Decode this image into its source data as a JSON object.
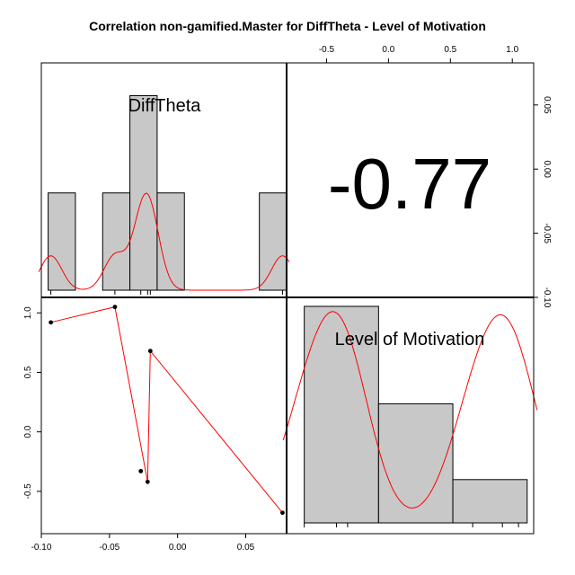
{
  "chart_data": {
    "type": "scatter",
    "title": "Correlation non-gamified.Master for DiffTheta - Level of Motivation",
    "variables": [
      "DiffTheta",
      "Level of Motivation"
    ],
    "correlation": "-0.77",
    "scatter": {
      "x": [
        -0.093,
        -0.046,
        -0.027,
        -0.022,
        -0.02,
        0.077
      ],
      "y": [
        0.92,
        1.05,
        -0.33,
        -0.42,
        0.68,
        -0.68
      ],
      "line_order": [
        0,
        1,
        3,
        4,
        5
      ]
    },
    "histograms": {
      "DiffTheta": {
        "bins": [
          [
            -0.095,
            -0.075,
            1
          ],
          [
            -0.055,
            -0.035,
            1
          ],
          [
            -0.035,
            -0.015,
            2
          ],
          [
            -0.015,
            0.005,
            1
          ],
          [
            0.06,
            0.08,
            1
          ]
        ],
        "ymax": 2.3
      },
      "Level of Motivation": {
        "bins": [
          [
            -0.68,
            -0.08,
            1
          ],
          [
            -0.08,
            0.52,
            0.55
          ],
          [
            0.52,
            1.12,
            0.2
          ]
        ],
        "ymax": 1.0
      }
    },
    "axes": {
      "bottom": {
        "range": [
          -0.1,
          0.08
        ],
        "ticks": [
          -0.1,
          -0.05,
          0.0,
          0.05
        ],
        "tick_labels": [
          "-0.10",
          "-0.05",
          "0.00",
          "0.05"
        ]
      },
      "left": {
        "range": [
          -0.75,
          1.1
        ],
        "ticks": [
          -0.5,
          0.0,
          0.5,
          1.0
        ],
        "tick_labels": [
          "-0.5",
          "0.0",
          "0.5",
          "1.0"
        ]
      },
      "top": {
        "range": [
          -0.75,
          1.1
        ],
        "ticks": [
          -0.5,
          0.0,
          0.5,
          1.0
        ],
        "tick_labels": [
          "-0.5",
          "0.0",
          "0.5",
          "1.0"
        ]
      },
      "right": {
        "range": [
          -0.1,
          0.08
        ],
        "ticks": [
          -0.1,
          -0.05,
          0.0,
          0.05
        ],
        "tick_labels": [
          "-0.10",
          "-0.05",
          "0.00",
          "0.05"
        ]
      }
    },
    "colors": {
      "bar": "#c8c8c8",
      "density": "#ff0000",
      "point": "#000000",
      "border": "#000000"
    },
    "grid": false
  }
}
